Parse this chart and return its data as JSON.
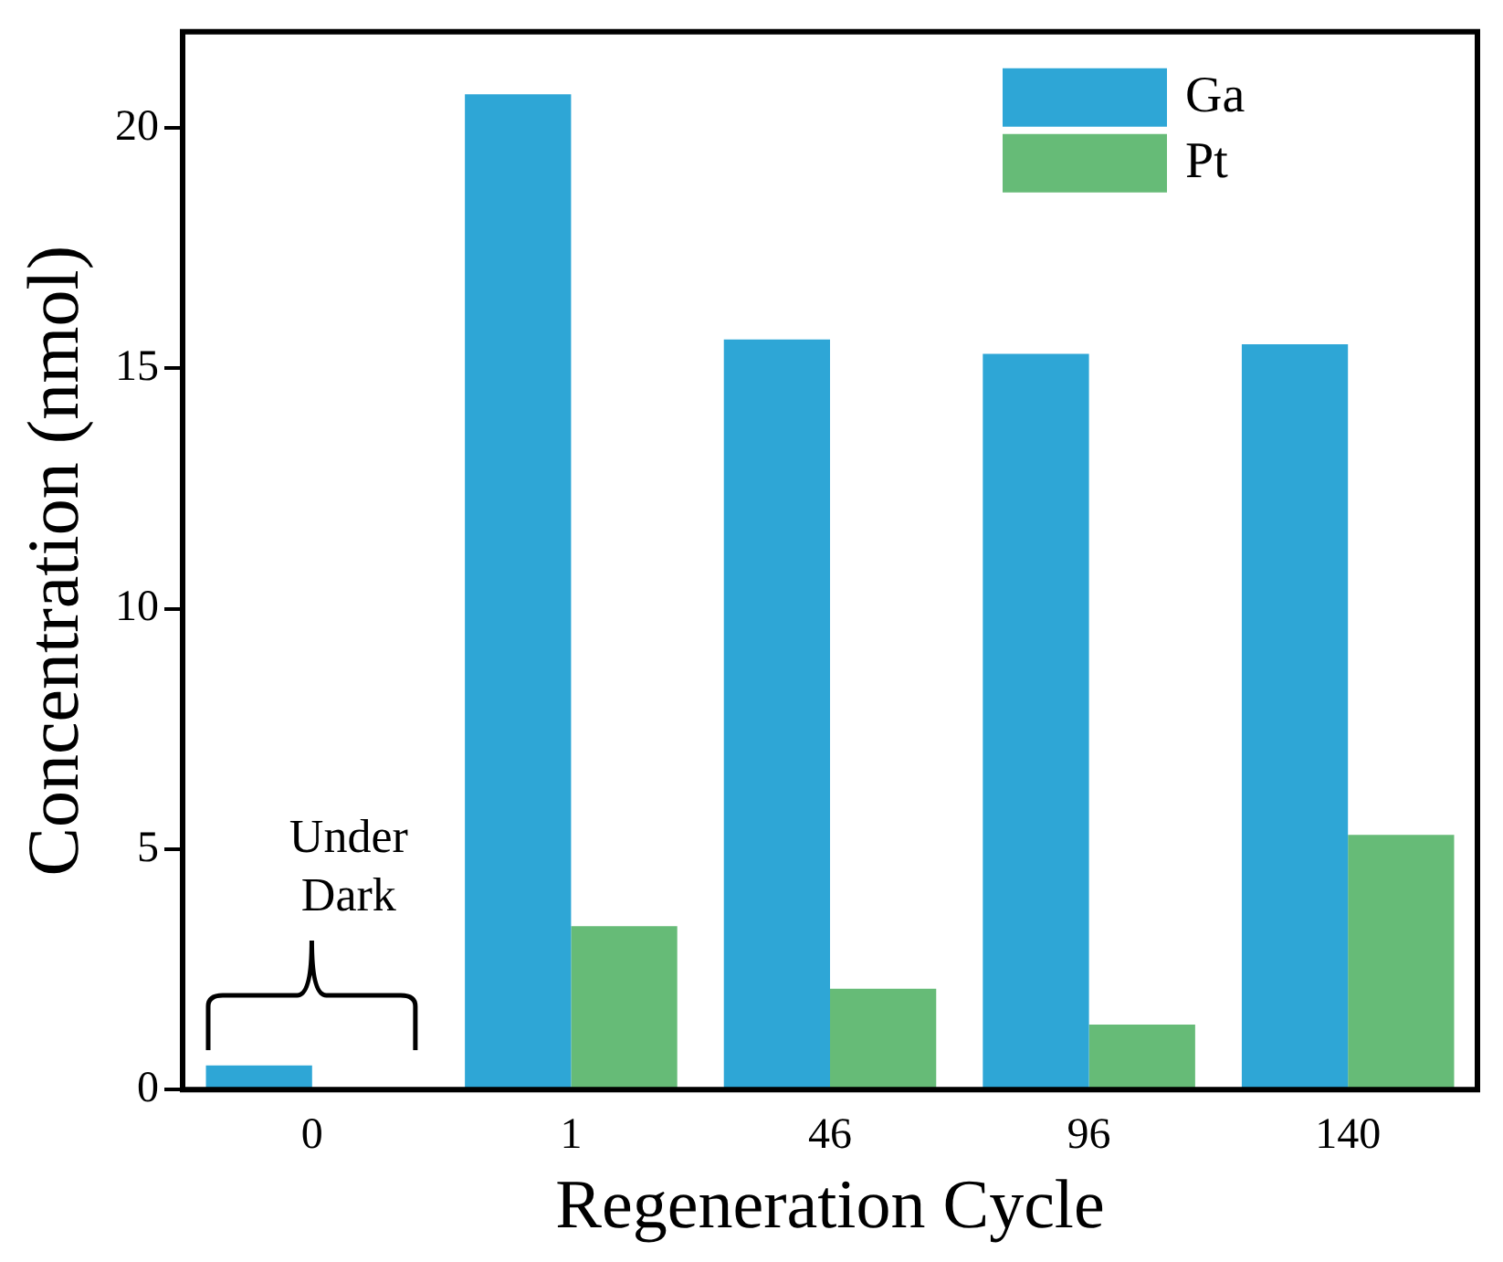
{
  "chart_data": {
    "type": "bar",
    "xlabel": "Regeneration Cycle",
    "ylabel": "Concentration (nmol)",
    "categories": [
      "0",
      "1",
      "46",
      "96",
      "140"
    ],
    "series": [
      {
        "name": "Ga",
        "color": "#2ea6d6",
        "values": [
          0.5,
          20.7,
          15.6,
          15.3,
          15.5
        ]
      },
      {
        "name": "Pt",
        "color": "#66bb77",
        "values": [
          null,
          3.4,
          2.1,
          1.35,
          5.3
        ]
      }
    ],
    "ylim": [
      0,
      22
    ],
    "yticks": [
      0,
      5,
      10,
      15,
      20
    ],
    "grid": false,
    "legend": "top right",
    "annotations": [
      "Under Dark"
    ]
  }
}
